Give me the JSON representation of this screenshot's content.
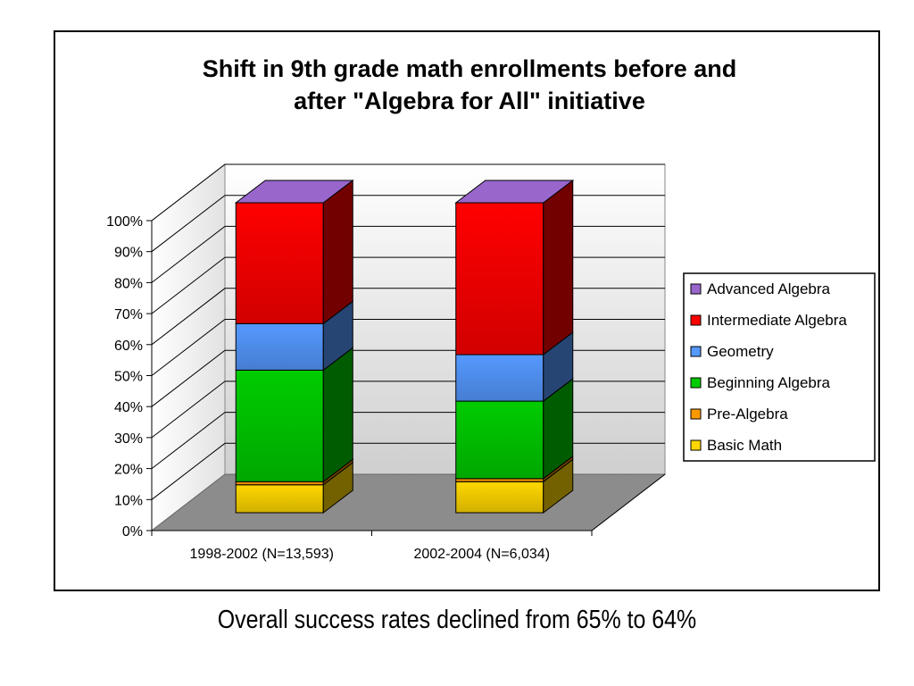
{
  "caption": "Overall success rates declined from 65% to 64%",
  "chart_data": {
    "type": "bar",
    "stacked": true,
    "three_d": true,
    "title": "Shift in 9th grade math enrollments before and after \"Algebra for All\" initiative",
    "title_lines": [
      "Shift in 9th grade math enrollments before and",
      "after \"Algebra for All\" initiative"
    ],
    "categories": [
      "1998-2002 (N=13,593)",
      "2002-2004 (N=6,034)"
    ],
    "y_ticks": [
      "0%",
      "10%",
      "20%",
      "30%",
      "40%",
      "50%",
      "60%",
      "70%",
      "80%",
      "90%",
      "100%"
    ],
    "ylim": [
      0,
      100
    ],
    "grid": true,
    "legend_position": "right",
    "series": [
      {
        "name": "Basic Math",
        "values": [
          9,
          10
        ],
        "color": "#ffd700"
      },
      {
        "name": "Pre-Algebra",
        "values": [
          1,
          1
        ],
        "color": "#ff9900"
      },
      {
        "name": "Beginning Algebra",
        "values": [
          36,
          25
        ],
        "color": "#00cc00"
      },
      {
        "name": "Geometry",
        "values": [
          15,
          15
        ],
        "color": "#5599ff"
      },
      {
        "name": "Intermediate Algebra",
        "values": [
          39,
          49
        ],
        "color": "#ff0000"
      },
      {
        "name": "Advanced Algebra",
        "values": [
          0,
          0
        ],
        "color": "#9966cc"
      }
    ]
  }
}
